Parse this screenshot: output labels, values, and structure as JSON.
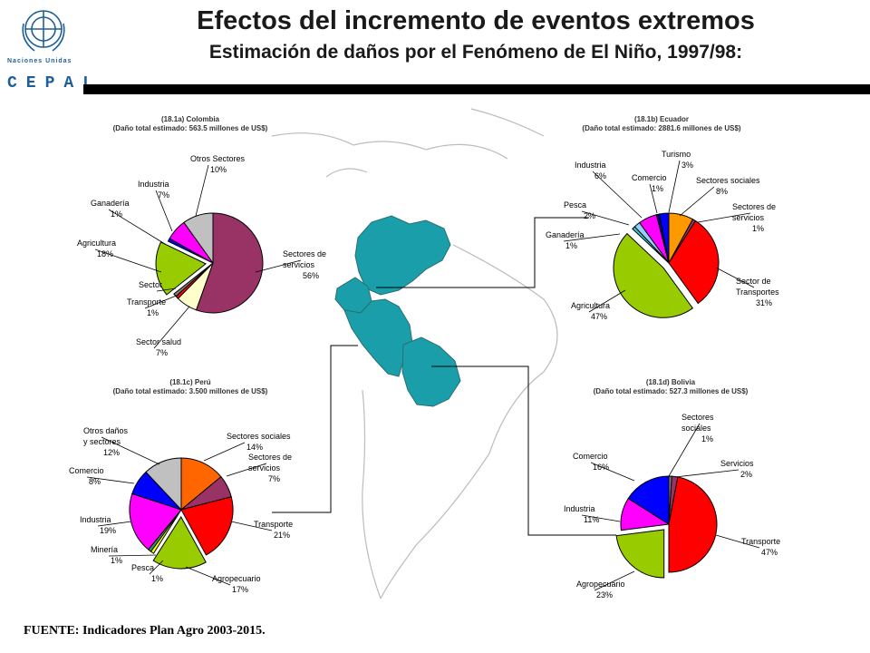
{
  "title": "Efectos del incremento de eventos extremos",
  "subtitle": "Estimación de daños por el Fenómeno de El Niño, 1997/98:",
  "logo": {
    "org": "Naciones Unidas",
    "name": "CEPAL",
    "icon": "un-emblem-icon"
  },
  "source": "FUENTE: Indicadores Plan Agro 2003-2015.",
  "colors": {
    "map": "#1a9faa",
    "rule": "#000000",
    "brand": "#1f5e9a"
  },
  "chart_data": [
    {
      "type": "pie",
      "title": "(18.1a) Colombia",
      "subtitle": "(Daño total estimado: 563.5 millones de US$)",
      "slices": [
        {
          "label": "Sectores de servicios",
          "value": 56,
          "text": "56%",
          "color": "#993366"
        },
        {
          "label": "Sector salud",
          "value": 7,
          "text": "7%",
          "color": "#ffffcc"
        },
        {
          "label": "Transporte",
          "value": 1,
          "text": "1%",
          "color": "#ff0000"
        },
        {
          "label": "Sector",
          "value": 1,
          "text": "",
          "color": "#808080"
        },
        {
          "label": "Agricultura",
          "value": 18,
          "text": "18%",
          "color": "#99cc00"
        },
        {
          "label": "Ganadería",
          "value": 1,
          "text": "1%",
          "color": "#0000ff"
        },
        {
          "label": "Industria",
          "value": 7,
          "text": "7%",
          "color": "#ff00ff"
        },
        {
          "label": "Otros Sectores",
          "value": 10,
          "text": "10%",
          "color": "#c0c0c0"
        }
      ]
    },
    {
      "type": "pie",
      "title": "(18.1b) Ecuador",
      "subtitle": "(Daño total estimado: 2881.6 millones de US$)",
      "slices": [
        {
          "label": "Sectores sociales",
          "value": 8,
          "text": "8%",
          "color": "#ff9900"
        },
        {
          "label": "Sectores de servicios",
          "value": 1,
          "text": "1%",
          "color": "#993366"
        },
        {
          "label": "Sector de Transportes",
          "value": 31,
          "text": "31%",
          "color": "#ff0000"
        },
        {
          "label": "Agricultura",
          "value": 47,
          "text": "47%",
          "color": "#99cc00"
        },
        {
          "label": "Ganadería",
          "value": 1,
          "text": "1%",
          "color": "#33cccc"
        },
        {
          "label": "Pesca",
          "value": 2,
          "text": "2%",
          "color": "#99ccff"
        },
        {
          "label": "Industria",
          "value": 6,
          "text": "6%",
          "color": "#ff00ff"
        },
        {
          "label": "Comercio",
          "value": 1,
          "text": "1%",
          "color": "#000080"
        },
        {
          "label": "Turismo",
          "value": 3,
          "text": "3%",
          "color": "#0000ff"
        }
      ]
    },
    {
      "type": "pie",
      "title": "(18.1c) Perú",
      "subtitle": "(Daño total estimado: 3.500  millones de US$)",
      "slices": [
        {
          "label": "Sectores sociales",
          "value": 14,
          "text": "14%",
          "color": "#ff6600"
        },
        {
          "label": "Sectores de servicios",
          "value": 7,
          "text": "7%",
          "color": "#993366"
        },
        {
          "label": "Transporte",
          "value": 21,
          "text": "21%",
          "color": "#ff0000"
        },
        {
          "label": "Agropecuario",
          "value": 17,
          "text": "17%",
          "color": "#99cc00"
        },
        {
          "label": "Pesca",
          "value": 1,
          "text": "1%",
          "color": "#ffff00"
        },
        {
          "label": "Minería",
          "value": 1,
          "text": "1%",
          "color": "#339966"
        },
        {
          "label": "Industria",
          "value": 19,
          "text": "19%",
          "color": "#ff00ff"
        },
        {
          "label": "Comercio",
          "value": 8,
          "text": "8%",
          "color": "#0000ff"
        },
        {
          "label": "Otros daños y sectores",
          "value": 12,
          "text": "12%",
          "color": "#c0c0c0"
        }
      ]
    },
    {
      "type": "pie",
      "title": "(18.1d) Bolivia",
      "subtitle": "(Daño total estimado: 527.3 millones de US$)",
      "slices": [
        {
          "label": "Sectores sociales",
          "value": 1,
          "text": "1%",
          "color": "#808080"
        },
        {
          "label": "Servicios",
          "value": 2,
          "text": "2%",
          "color": "#993366"
        },
        {
          "label": "Transporte",
          "value": 47,
          "text": "47%",
          "color": "#ff0000"
        },
        {
          "label": "Agropecuario",
          "value": 23,
          "text": "23%",
          "color": "#99cc00"
        },
        {
          "label": "Industria",
          "value": 11,
          "text": "11%",
          "color": "#ff00ff"
        },
        {
          "label": "Comercio",
          "value": 16,
          "text": "16%",
          "color": "#0000ff"
        }
      ]
    }
  ]
}
